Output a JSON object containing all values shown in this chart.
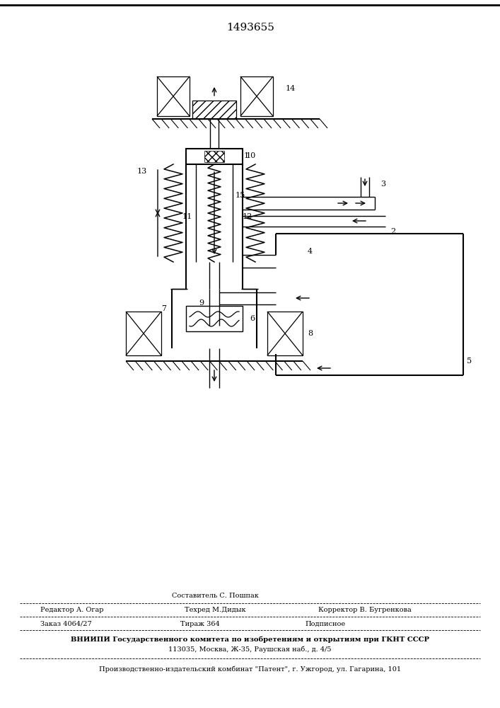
{
  "title": "1493655",
  "bg_color": "#ffffff",
  "fig_width": 7.07,
  "fig_height": 10.0,
  "footer": {
    "sestavitel": "Составитель С. Пошпак",
    "redaktor": "Редактор А. Огар",
    "tehred": "Техред М.Дидык",
    "korrektor": "Корректор В. Бугренкова",
    "zakaz": "Заказ 4064/27",
    "tirazh": "Тираж 364",
    "podpisnoe": "Подписное",
    "vniipи": "ВНИИПИ Государственного комитета по изобретениям и открытиям при ГКНТ СССР",
    "address": "113035, Москва, Ж-35, Раушская наб., д. 4/5",
    "kombinat": "Производственно-издательский комбинат \"Патент\", г. Ужгород, ул. Гагарина, 101"
  }
}
